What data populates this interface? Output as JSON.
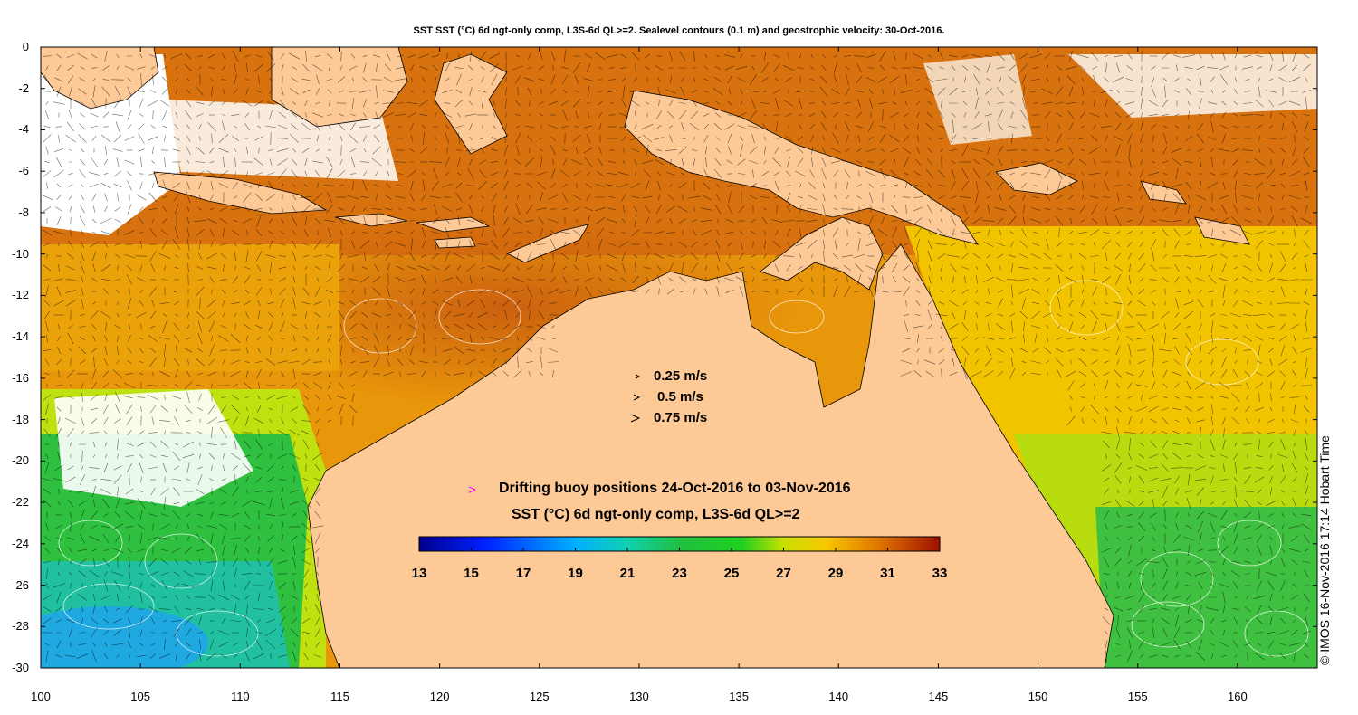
{
  "title": "SST SST (°C) 6d ngt-only comp, L3S-6d QL>=2. Sealevel contours (0.1 m) and geostrophic velocity: 30-Oct-2016.",
  "map": {
    "lon_range": [
      100,
      164
    ],
    "lat_range": [
      -30,
      0
    ],
    "x_ticks": [
      "100",
      "105",
      "110",
      "115",
      "120",
      "125",
      "130",
      "135",
      "140",
      "145",
      "150",
      "155",
      "160"
    ],
    "y_ticks": [
      "0",
      "-2",
      "-4",
      "-6",
      "-8",
      "-10",
      "-12",
      "-14",
      "-16",
      "-18",
      "-20",
      "-22",
      "-24",
      "-26",
      "-28",
      "-30"
    ],
    "land_color": "#fcc997",
    "cloud_color": "#ffffff"
  },
  "velocity_legend": {
    "items": [
      {
        "label": "0.25 m/s"
      },
      {
        "label": "0.5 m/s"
      },
      {
        "label": "0.75 m/s"
      }
    ]
  },
  "buoy_legend": {
    "marker": ">",
    "marker_color": "#ff00ff",
    "label": "Drifting buoy positions 24-Oct-2016 to 03-Nov-2016"
  },
  "colorbar": {
    "title": "SST (°C) 6d ngt-only comp, L3S-6d QL>=2",
    "min": 13,
    "max": 33,
    "ticks": [
      "13",
      "15",
      "17",
      "19",
      "21",
      "23",
      "25",
      "27",
      "29",
      "31",
      "33"
    ],
    "colormap": "jet-like"
  },
  "credit": "© IMOS 16-Nov-2016 17:14 Hobart Time"
}
